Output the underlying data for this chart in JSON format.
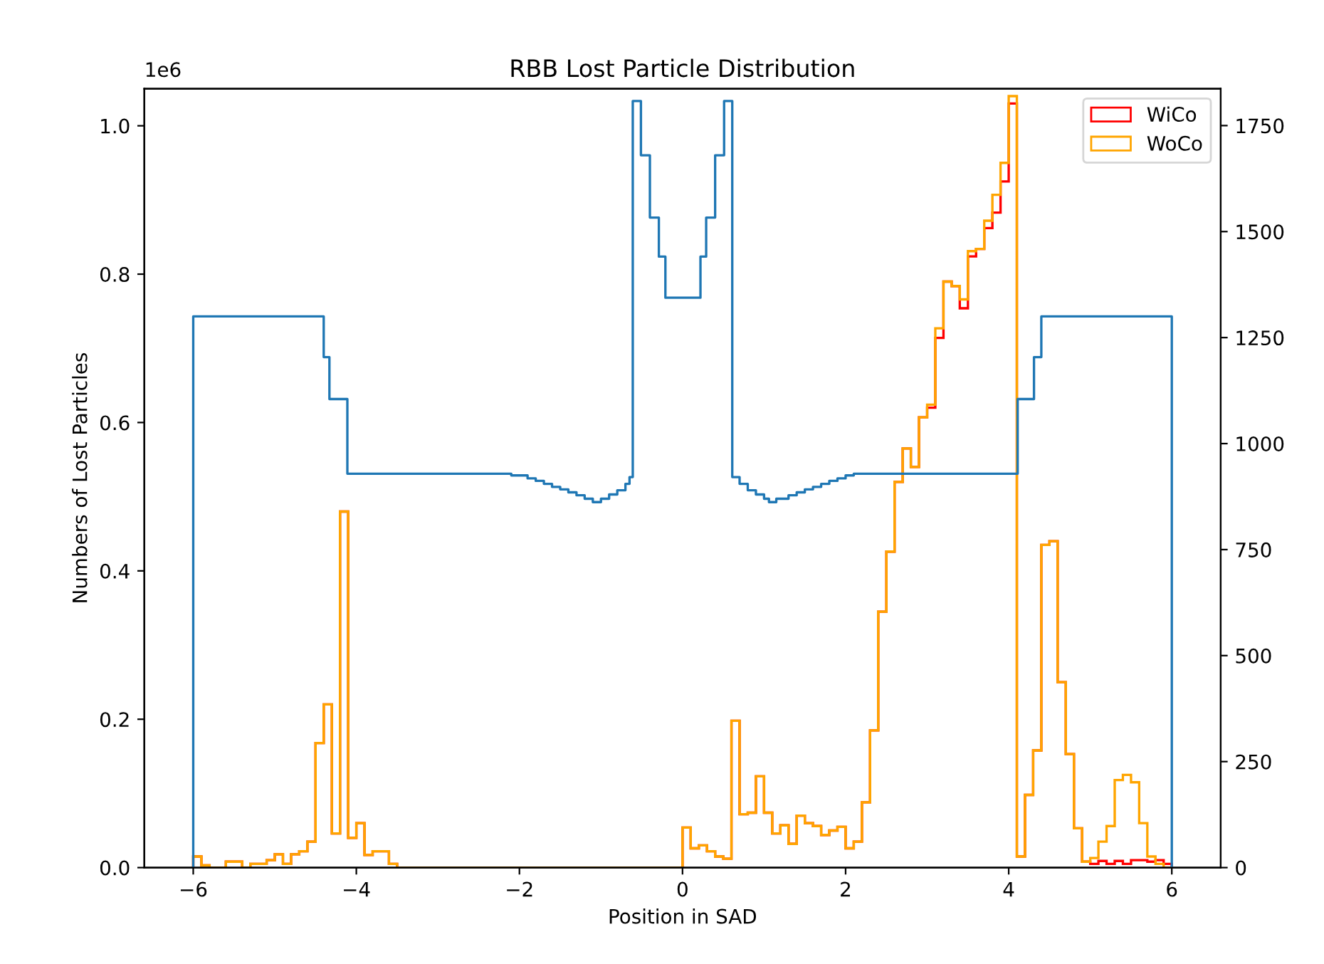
{
  "chart_data": {
    "type": "histogram",
    "title": "RBB Lost Particle Distribution",
    "xlabel": "Position in SAD",
    "ylabel": "Numbers of Lost Particles",
    "annotations": [
      "1e6"
    ],
    "bins": [
      -6.0,
      -5.9,
      -5.8,
      -5.7,
      -5.6,
      -5.5,
      -5.4,
      -5.3,
      -5.2,
      -5.1,
      -5.0,
      -4.9,
      -4.8,
      -4.7,
      -4.6,
      -4.5,
      -4.4,
      -4.3,
      -4.2,
      -4.1,
      -4.0,
      -3.9,
      -3.8,
      -3.7,
      -3.6,
      -3.5,
      -3.4,
      -3.3,
      -3.2,
      -3.1,
      -3.0,
      -2.9,
      -2.8,
      -2.7,
      -2.6,
      -2.5,
      -2.4,
      -2.3,
      -2.2,
      -2.1,
      -2.0,
      -1.9,
      -1.8,
      -1.7,
      -1.6,
      -1.5,
      -1.4,
      -1.3,
      -1.2,
      -1.1,
      -1.0,
      -0.9,
      -0.8,
      -0.7,
      -0.6,
      -0.5,
      -0.4,
      -0.3,
      -0.2,
      -0.1,
      0.0,
      0.1,
      0.2,
      0.3,
      0.4,
      0.5,
      0.6,
      0.7,
      0.8,
      0.9,
      1.0,
      1.1,
      1.2,
      1.3,
      1.4,
      1.5,
      1.6,
      1.7,
      1.8,
      1.9,
      2.0,
      2.1,
      2.2,
      2.3,
      2.4,
      2.5,
      2.6,
      2.7,
      2.8,
      2.9,
      3.0,
      3.1,
      3.2,
      3.3,
      3.4,
      3.5,
      3.6,
      3.7,
      3.8,
      3.9,
      4.0,
      4.1,
      4.2,
      4.3,
      4.4,
      4.5,
      4.6,
      4.7,
      4.8,
      4.9,
      5.0,
      5.1,
      5.2,
      5.3,
      5.4,
      5.5,
      5.6,
      5.7,
      5.8,
      5.9,
      6.0
    ],
    "series": [
      {
        "name": "WiCo",
        "color": "#ff0000",
        "values": [
          0.015,
          0.003,
          0.0,
          0.0,
          0.008,
          0.008,
          0.0,
          0.005,
          0.005,
          0.01,
          0.018,
          0.005,
          0.018,
          0.022,
          0.035,
          0.168,
          0.22,
          0.046,
          0.48,
          0.04,
          0.06,
          0.017,
          0.022,
          0.022,
          0.005,
          0,
          0,
          0,
          0,
          0,
          0,
          0,
          0,
          0,
          0,
          0,
          0,
          0,
          0,
          0,
          0,
          0,
          0,
          0,
          0,
          0,
          0,
          0,
          0,
          0,
          0,
          0,
          0,
          0,
          0,
          0,
          0,
          0,
          0,
          0,
          0.054,
          0.026,
          0.03,
          0.022,
          0.015,
          0.012,
          0.198,
          0.072,
          0.074,
          0.123,
          0.074,
          0.046,
          0.057,
          0.032,
          0.07,
          0.06,
          0.056,
          0.044,
          0.05,
          0.055,
          0.026,
          0.035,
          0.088,
          0.185,
          0.345,
          0.426,
          0.52,
          0.565,
          0.54,
          0.607,
          0.62,
          0.714,
          0.79,
          0.784,
          0.754,
          0.824,
          0.834,
          0.862,
          0.883,
          0.925,
          1.03,
          0.015,
          0.098,
          0.158,
          0.435,
          0.44,
          0.25,
          0.153,
          0.053,
          0.008,
          0.005,
          0.009,
          0.005,
          0.009,
          0.005,
          0.01,
          0.01,
          0.008,
          0.01,
          0.005
        ]
      },
      {
        "name": "WoCo",
        "color": "#ffa500",
        "values": [
          0.015,
          0.003,
          0.0,
          0.0,
          0.008,
          0.008,
          0.0,
          0.005,
          0.005,
          0.01,
          0.018,
          0.005,
          0.018,
          0.022,
          0.035,
          0.168,
          0.22,
          0.046,
          0.48,
          0.04,
          0.06,
          0.017,
          0.022,
          0.022,
          0.005,
          0,
          0,
          0,
          0,
          0,
          0,
          0,
          0,
          0,
          0,
          0,
          0,
          0,
          0,
          0,
          0,
          0,
          0,
          0,
          0,
          0,
          0,
          0,
          0,
          0,
          0,
          0,
          0,
          0,
          0,
          0,
          0,
          0,
          0,
          0,
          0.054,
          0.026,
          0.03,
          0.022,
          0.015,
          0.012,
          0.198,
          0.072,
          0.074,
          0.123,
          0.074,
          0.046,
          0.057,
          0.032,
          0.07,
          0.06,
          0.056,
          0.044,
          0.05,
          0.055,
          0.026,
          0.035,
          0.088,
          0.185,
          0.345,
          0.426,
          0.52,
          0.565,
          0.54,
          0.607,
          0.624,
          0.727,
          0.79,
          0.784,
          0.766,
          0.831,
          0.834,
          0.872,
          0.907,
          0.95,
          1.04,
          0.015,
          0.098,
          0.158,
          0.435,
          0.44,
          0.25,
          0.153,
          0.053,
          0.008,
          0.013,
          0.035,
          0.056,
          0.118,
          0.125,
          0.115,
          0.06,
          0.015,
          0.005,
          0.0
        ]
      },
      {
        "type": "step",
        "axis": "y2",
        "color": "#1f77b4",
        "x": [
          -6.0,
          -6.0,
          -4.4,
          -4.33,
          -4.11,
          -2.1,
          -1.9,
          -1.8,
          -1.7,
          -1.6,
          -1.5,
          -1.4,
          -1.3,
          -1.2,
          -1.1,
          -1.0,
          -0.9,
          -0.8,
          -0.7,
          -0.65,
          -0.61,
          -0.51,
          -0.4,
          -0.29,
          -0.21,
          0.22,
          0.29,
          0.4,
          0.51,
          0.61,
          0.7,
          0.8,
          0.9,
          1.0,
          1.06,
          1.15,
          1.3,
          1.4,
          1.5,
          1.6,
          1.7,
          1.8,
          1.9,
          2.0,
          2.1,
          4.11,
          4.31,
          4.4,
          6.0
        ],
        "values": [
          0,
          1300,
          1204,
          1105,
          929,
          925,
          918,
          912,
          905,
          898,
          892,
          885,
          878,
          870,
          862,
          870,
          880,
          890,
          905,
          921,
          1808,
          1680,
          1533,
          1441,
          1344,
          1441,
          1533,
          1680,
          1808,
          921,
          905,
          890,
          880,
          870,
          862,
          870,
          878,
          885,
          892,
          898,
          905,
          912,
          918,
          925,
          929,
          1105,
          1204,
          1300,
          0
        ]
      }
    ],
    "xlim": [
      -6.6,
      6.6
    ],
    "xticks": [
      {
        "value": -6,
        "label": "−6"
      },
      {
        "value": -4,
        "label": "−4"
      },
      {
        "value": -2,
        "label": "−2"
      },
      0,
      2,
      4,
      6
    ],
    "ylim": [
      0,
      1.05
    ],
    "yticks": [
      {
        "value": 0,
        "label": "0.0"
      },
      0.2,
      0.4,
      0.6,
      0.8,
      {
        "value": 1,
        "label": "1.0"
      }
    ],
    "y2lim": [
      0,
      1837
    ],
    "y2ticks": [
      0,
      250,
      500,
      750,
      1000,
      1250,
      1500,
      1750
    ],
    "legend": "top right"
  }
}
